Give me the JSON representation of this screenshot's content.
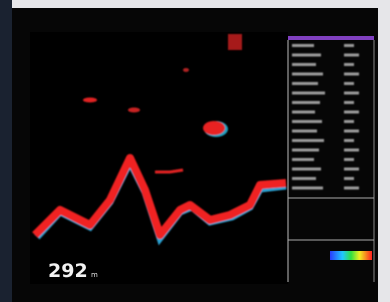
{
  "depth": {
    "value": "292",
    "unit": "m"
  }
}
